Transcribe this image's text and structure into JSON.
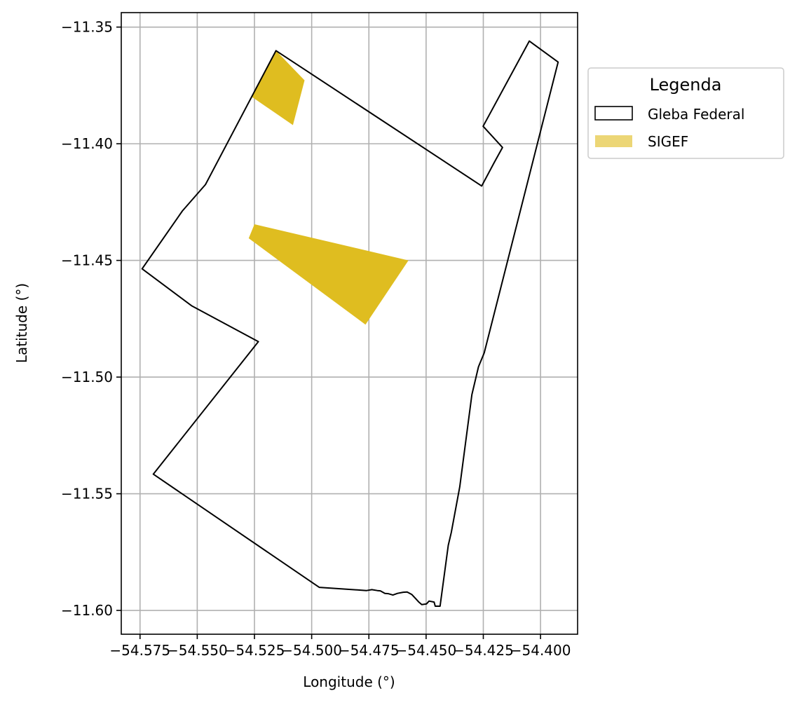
{
  "chart_data": {
    "type": "map",
    "xlabel": "Longitude (°)",
    "ylabel": "Latitude (°)",
    "xlim": [
      -54.5832,
      -54.3838
    ],
    "ylim": [
      -11.6102,
      -11.3438
    ],
    "x_ticks": [
      -54.575,
      -54.55,
      -54.525,
      -54.5,
      -54.475,
      -54.45,
      -54.425,
      -54.4
    ],
    "x_tick_labels": [
      "−54.575",
      "−54.550",
      "−54.525",
      "−54.500",
      "−54.475",
      "−54.450",
      "−54.425",
      "−54.400"
    ],
    "y_ticks": [
      -11.35,
      -11.4,
      -11.45,
      -11.5,
      -11.55,
      -11.6
    ],
    "y_tick_labels": [
      "−11.35",
      "−11.40",
      "−11.45",
      "−11.50",
      "−11.55",
      "−11.60"
    ],
    "grid": true,
    "legend": {
      "title": "Legenda",
      "placement": "outside-upper-right",
      "entries": [
        {
          "label": "Gleba Federal",
          "style": "outline",
          "color": "#000000"
        },
        {
          "label": "SIGEF",
          "style": "fill",
          "color": "#ecd676"
        }
      ]
    },
    "series": [
      {
        "name": "Gleba Federal",
        "kind": "polygon-outline",
        "color": "#000000",
        "coords": [
          [
            -54.5156,
            -11.3601
          ],
          [
            -54.4257,
            -11.4181
          ],
          [
            -54.4203,
            -11.4082
          ],
          [
            -54.4166,
            -11.4016
          ],
          [
            -54.4251,
            -11.3925
          ],
          [
            -54.4049,
            -11.356
          ],
          [
            -54.3923,
            -11.365
          ],
          [
            -54.4246,
            -11.4896
          ],
          [
            -54.4271,
            -11.4956
          ],
          [
            -54.43,
            -11.5075
          ],
          [
            -54.4353,
            -11.547
          ],
          [
            -54.439,
            -11.5666
          ],
          [
            -54.4403,
            -11.5721
          ],
          [
            -54.4439,
            -11.5982
          ],
          [
            -54.446,
            -11.5982
          ],
          [
            -54.4465,
            -11.5964
          ],
          [
            -54.4487,
            -11.596
          ],
          [
            -54.4498,
            -11.5972
          ],
          [
            -54.4519,
            -11.5975
          ],
          [
            -54.4533,
            -11.5963
          ],
          [
            -54.4545,
            -11.595
          ],
          [
            -54.4562,
            -11.5932
          ],
          [
            -54.4583,
            -11.5921
          ],
          [
            -54.46,
            -11.5922
          ],
          [
            -54.4625,
            -11.5927
          ],
          [
            -54.4645,
            -11.5934
          ],
          [
            -54.4666,
            -11.5928
          ],
          [
            -54.468,
            -11.5927
          ],
          [
            -54.47,
            -11.5916
          ],
          [
            -54.4713,
            -11.5915
          ],
          [
            -54.4737,
            -11.5911
          ],
          [
            -54.476,
            -11.5915
          ],
          [
            -54.4967,
            -11.5901
          ],
          [
            -54.5692,
            -11.5416
          ],
          [
            -54.5233,
            -11.4848
          ],
          [
            -54.5525,
            -11.4694
          ],
          [
            -54.5741,
            -11.4536
          ],
          [
            -54.5565,
            -11.4288
          ],
          [
            -54.5464,
            -11.4175
          ],
          [
            -54.5156,
            -11.3601
          ]
        ]
      },
      {
        "name": "SIGEF",
        "kind": "polygon-fill",
        "color": "#dfbd20",
        "polygons": [
          [
            [
              -54.5156,
              -11.3601
            ],
            [
              -54.5031,
              -11.3728
            ],
            [
              -54.5082,
              -11.392
            ],
            [
              -54.526,
              -11.38
            ],
            [
              -54.5156,
              -11.3601
            ]
          ],
          [
            [
              -54.525,
              -11.4345
            ],
            [
              -54.4577,
              -11.45
            ],
            [
              -54.4765,
              -11.4775
            ],
            [
              -54.5275,
              -11.4405
            ],
            [
              -54.525,
              -11.4345
            ]
          ]
        ]
      }
    ]
  }
}
